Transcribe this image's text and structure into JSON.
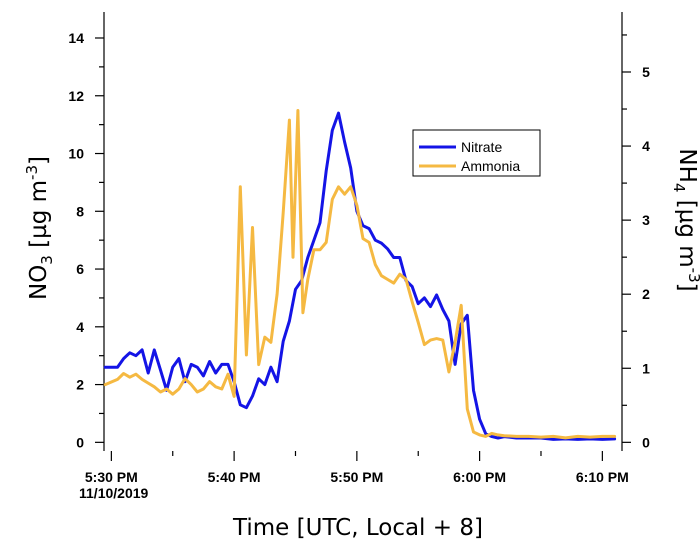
{
  "chart_data": {
    "type": "line",
    "xlabel": "Time [UTC, Local + 8]",
    "ylabel_left": "NO3 [µg m-3]",
    "ylabel_right": "NH4 [µg m-3]",
    "date_label": "11/10/2019",
    "x_ticks": [
      {
        "t": 0,
        "label": "5:30 PM"
      },
      {
        "t": 10,
        "label": "5:40 PM"
      },
      {
        "t": 20,
        "label": "5:50 PM"
      },
      {
        "t": 30,
        "label": "6:00 PM"
      },
      {
        "t": 40,
        "label": "6:10 PM"
      }
    ],
    "xlim": [
      -0.6,
      41.6
    ],
    "ylim_left": [
      -0.3,
      14.9
    ],
    "ylim_right": [
      -0.117,
      5.81
    ],
    "y_ticks_left": [
      0,
      2,
      4,
      6,
      8,
      10,
      12,
      14
    ],
    "y_ticks_right": [
      0,
      1,
      2,
      3,
      4,
      5
    ],
    "legend_position": "upper-right (inside plot)",
    "series": [
      {
        "name": "Nitrate",
        "axis": "left",
        "color": "#1414e6",
        "x": [
          -0.5,
          0.5,
          1.0,
          1.5,
          2.0,
          2.5,
          3.0,
          3.5,
          4.0,
          4.5,
          5.0,
          5.5,
          6.0,
          6.5,
          7.0,
          7.5,
          8.0,
          8.5,
          9.0,
          9.5,
          10.0,
          10.5,
          11.0,
          11.5,
          12.0,
          12.5,
          13.0,
          13.5,
          14.0,
          14.5,
          15.0,
          15.5,
          16.0,
          16.5,
          17.0,
          17.5,
          18.0,
          18.5,
          19.0,
          19.5,
          20.0,
          20.5,
          21.0,
          21.5,
          22.0,
          22.5,
          23.0,
          23.5,
          24.0,
          24.5,
          25.0,
          25.5,
          26.0,
          26.5,
          27.0,
          27.5,
          28.0,
          28.5,
          29.0,
          29.5,
          30.0,
          30.5,
          31.0,
          31.5,
          32.0,
          33.0,
          34.0,
          35.0,
          36.0,
          37.0,
          38.0,
          39.0,
          40.0,
          41.0
        ],
        "values": [
          2.6,
          2.6,
          2.9,
          3.1,
          3.0,
          3.2,
          2.4,
          3.2,
          2.5,
          1.8,
          2.6,
          2.9,
          2.1,
          2.7,
          2.6,
          2.3,
          2.8,
          2.4,
          2.7,
          2.7,
          2.1,
          1.3,
          1.2,
          1.6,
          2.2,
          2.0,
          2.6,
          2.1,
          3.5,
          4.2,
          5.3,
          5.6,
          6.4,
          7.0,
          7.6,
          9.4,
          10.8,
          11.4,
          10.4,
          9.5,
          8.0,
          7.5,
          7.4,
          7.0,
          6.9,
          6.7,
          6.4,
          6.4,
          5.6,
          5.4,
          4.8,
          5.0,
          4.7,
          5.1,
          4.6,
          4.2,
          2.7,
          4.1,
          4.4,
          1.8,
          0.8,
          0.3,
          0.2,
          0.15,
          0.2,
          0.15,
          0.15,
          0.15,
          0.1,
          0.12,
          0.1,
          0.12,
          0.1,
          0.12
        ]
      },
      {
        "name": "Ammonia",
        "axis": "right",
        "color": "#f5b942",
        "x": [
          -0.5,
          0.5,
          1.0,
          1.5,
          2.0,
          2.5,
          3.0,
          3.5,
          4.0,
          4.5,
          5.0,
          5.5,
          6.0,
          6.5,
          7.0,
          7.5,
          8.0,
          8.5,
          9.0,
          9.5,
          10.0,
          10.5,
          11.0,
          11.5,
          12.0,
          12.5,
          13.0,
          13.5,
          14.0,
          14.5,
          14.8,
          15.2,
          15.6,
          16.0,
          16.5,
          17.0,
          17.5,
          18.0,
          18.5,
          19.0,
          19.5,
          20.0,
          20.5,
          21.0,
          21.5,
          22.0,
          22.5,
          23.0,
          23.5,
          24.0,
          24.5,
          25.0,
          25.5,
          26.0,
          26.5,
          27.0,
          27.5,
          28.0,
          28.5,
          29.0,
          29.5,
          30.0,
          30.5,
          31.0,
          31.5,
          32.0,
          33.0,
          34.0,
          35.0,
          36.0,
          37.0,
          38.0,
          39.0,
          40.0,
          41.0
        ],
        "values": [
          0.78,
          0.85,
          0.93,
          0.88,
          0.92,
          0.85,
          0.8,
          0.75,
          0.68,
          0.72,
          0.65,
          0.72,
          0.86,
          0.78,
          0.68,
          0.72,
          0.82,
          0.75,
          0.72,
          0.92,
          0.62,
          3.45,
          1.18,
          2.9,
          1.05,
          1.42,
          1.35,
          2.0,
          3.1,
          4.35,
          2.5,
          4.48,
          1.75,
          2.2,
          2.6,
          2.6,
          2.7,
          3.28,
          3.45,
          3.35,
          3.45,
          3.2,
          2.75,
          2.7,
          2.4,
          2.25,
          2.2,
          2.15,
          2.27,
          2.2,
          1.9,
          1.62,
          1.32,
          1.38,
          1.4,
          1.38,
          0.95,
          1.35,
          1.85,
          0.45,
          0.14,
          0.1,
          0.08,
          0.12,
          0.1,
          0.09,
          0.08,
          0.08,
          0.07,
          0.08,
          0.06,
          0.08,
          0.07,
          0.08,
          0.08
        ]
      }
    ]
  }
}
